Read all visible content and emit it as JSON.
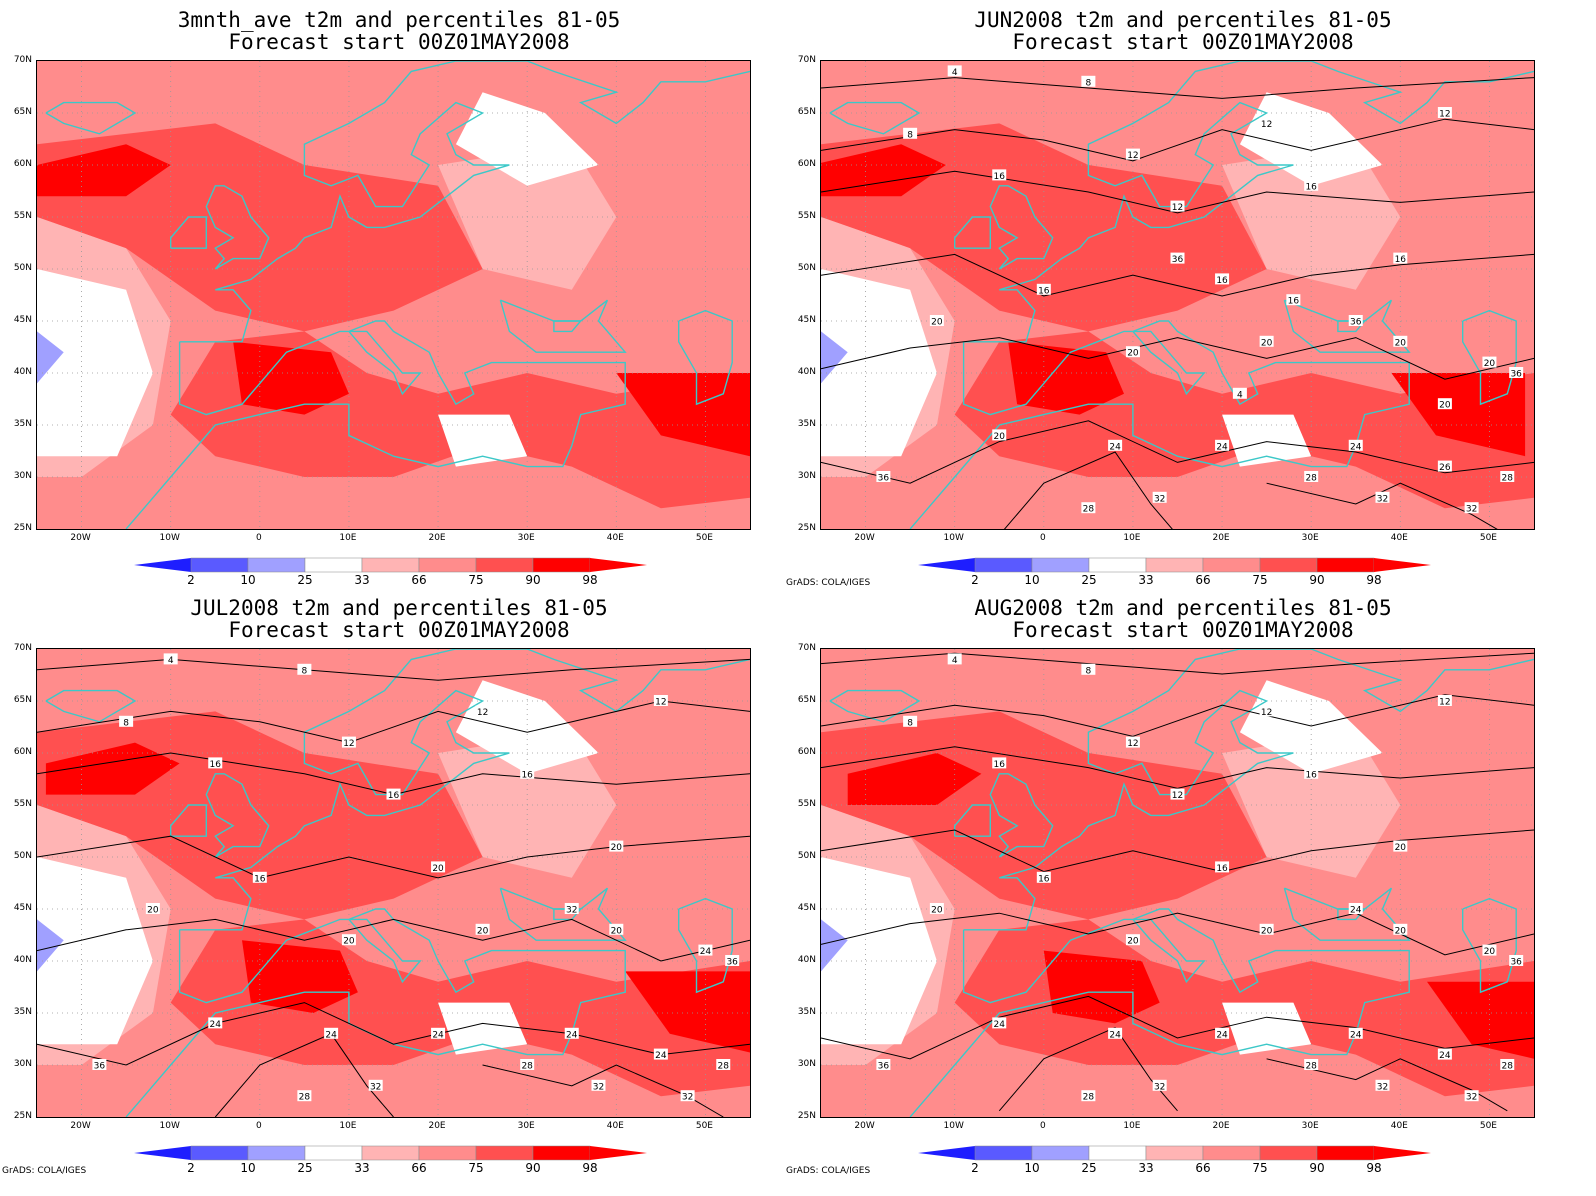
{
  "colors": {
    "p2": "#1e1eff",
    "p10": "#5a5aff",
    "p25": "#a0a0ff",
    "p33": "#ffffff",
    "p66": "#ffb4b4",
    "p75": "#ff8c8c",
    "p90": "#ff5050",
    "p98": "#ff0000",
    "coast": "#3cc8c8",
    "contour": "#000000"
  },
  "legend_labels": [
    "2",
    "10",
    "25",
    "33",
    "66",
    "75",
    "90",
    "98"
  ],
  "lat_labels": [
    "70N",
    "65N",
    "60N",
    "55N",
    "50N",
    "45N",
    "40N",
    "35N",
    "30N",
    "25N"
  ],
  "lon_labels": [
    "20W",
    "10W",
    "0",
    "10E",
    "20E",
    "30E",
    "40E",
    "50E"
  ],
  "credit": "GrADS: COLA/IGES",
  "panels": [
    {
      "title1": "3mnth_ave t2m and percentiles 81-05",
      "title2": "Forecast start 00Z01MAY2008",
      "show_credit": false,
      "contour_labels": []
    },
    {
      "title1": "JUN2008 t2m and percentiles 81-05",
      "title2": "Forecast start 00Z01MAY2008",
      "show_credit": true,
      "contour_labels": [
        "4",
        "8",
        "8",
        "12",
        "12",
        "12",
        "12",
        "16",
        "16",
        "16",
        "16",
        "16",
        "20",
        "20",
        "20",
        "20",
        "20",
        "20",
        "24",
        "24",
        "24",
        "26",
        "28",
        "28",
        "28",
        "32",
        "32",
        "32",
        "36",
        "36",
        "36",
        "36",
        "16",
        "20",
        "4"
      ]
    },
    {
      "title1": "JUL2008 t2m and percentiles 81-05",
      "title2": "Forecast start 00Z01MAY2008",
      "show_credit": true,
      "contour_labels": [
        "4",
        "8",
        "8",
        "12",
        "12",
        "12",
        "16",
        "16",
        "16",
        "16",
        "20",
        "20",
        "20",
        "20",
        "20",
        "20",
        "24",
        "24",
        "24",
        "24",
        "24",
        "24",
        "28",
        "28",
        "28",
        "32",
        "32",
        "32",
        "36",
        "36",
        "32"
      ]
    },
    {
      "title1": "AUG2008 t2m and percentiles 81-05",
      "title2": "Forecast start 00Z01MAY2008",
      "show_credit": true,
      "contour_labels": [
        "4",
        "8",
        "8",
        "12",
        "12",
        "12",
        "12",
        "16",
        "16",
        "16",
        "16",
        "20",
        "20",
        "20",
        "20",
        "20",
        "20",
        "24",
        "24",
        "24",
        "24",
        "24",
        "28",
        "28",
        "28",
        "32",
        "32",
        "32",
        "36",
        "36",
        "24"
      ]
    }
  ]
}
